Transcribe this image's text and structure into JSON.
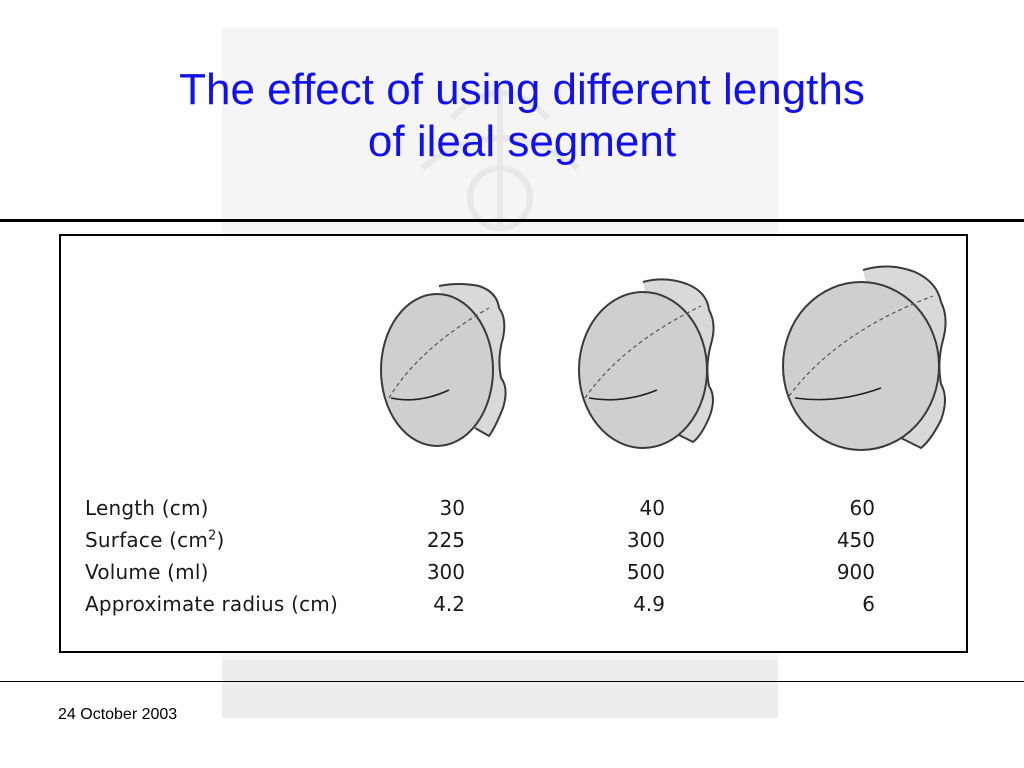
{
  "slide": {
    "title_line1": "The effect of using different lengths",
    "title_line2": "of ileal segment",
    "date": "24 October 2003"
  },
  "figure": {
    "pouch_icon": "ileal-pouch-illustration",
    "table": {
      "rows": [
        {
          "label": "Length (cm)",
          "sup": "",
          "label_end": "",
          "values": [
            "30",
            "40",
            "60"
          ]
        },
        {
          "label": "Surface (cm",
          "sup": "2",
          "label_end": ")",
          "values": [
            "225",
            "300",
            "450"
          ]
        },
        {
          "label": "Volume (ml)",
          "sup": "",
          "label_end": "",
          "values": [
            "300",
            "500",
            "900"
          ]
        },
        {
          "label": "Approximate radius (cm)",
          "sup": "",
          "label_end": "",
          "values": [
            "4.2",
            "4.9",
            "6"
          ]
        }
      ]
    }
  },
  "colors": {
    "title": "#1111ee",
    "pouch_fill": "#cfcfcf",
    "pouch_stroke": "#3a3a3a"
  }
}
